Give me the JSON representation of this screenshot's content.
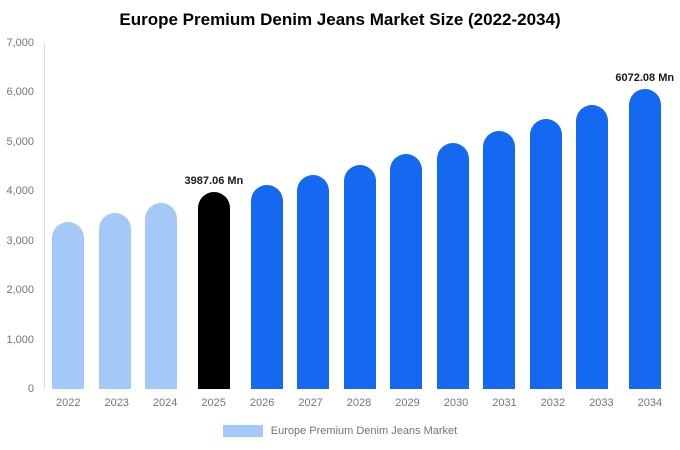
{
  "title": "Europe Premium Denim Jeans Market Size (2022-2034)",
  "legend": {
    "label": "Europe Premium Denim Jeans Market",
    "swatch_color": "#a4c9f8"
  },
  "colors": {
    "historical": "#a4c9f8",
    "base_year": "#000000",
    "forecast": "#1569f1",
    "axis_text": "#757575"
  },
  "chart_data": {
    "type": "bar",
    "title": "Europe Premium Denim Jeans Market Size (2022-2034)",
    "xlabel": "",
    "ylabel": "",
    "unit": "Mn",
    "categories": [
      "2022",
      "2023",
      "2024",
      "2025",
      "2026",
      "2027",
      "2028",
      "2029",
      "2030",
      "2031",
      "2032",
      "2033",
      "2034"
    ],
    "values": [
      3380,
      3560,
      3760,
      3987.06,
      4130,
      4330,
      4530,
      4750,
      4980,
      5220,
      5470,
      5740,
      6072.08
    ],
    "bar_colors": [
      "#a4c9f8",
      "#a4c9f8",
      "#a4c9f8",
      "#000000",
      "#1569f1",
      "#1569f1",
      "#1569f1",
      "#1569f1",
      "#1569f1",
      "#1569f1",
      "#1569f1",
      "#1569f1",
      "#1569f1"
    ],
    "data_labels": [
      "",
      "",
      "",
      "3987.06 Mn",
      "",
      "",
      "",
      "",
      "",
      "",
      "",
      "",
      "6072.08 Mn"
    ],
    "ylim": [
      0,
      7000
    ],
    "yticks": [
      {
        "value": 7000,
        "label": "7,000"
      },
      {
        "value": 6000,
        "label": "6,000"
      },
      {
        "value": 5000,
        "label": "5,000"
      },
      {
        "value": 4000,
        "label": "4,000"
      },
      {
        "value": 3000,
        "label": "3,000"
      },
      {
        "value": 2000,
        "label": "2,000"
      },
      {
        "value": 1000,
        "label": "1,000"
      },
      {
        "value": 0,
        "label": "0"
      }
    ],
    "grid": false,
    "legend_position": "bottom"
  }
}
